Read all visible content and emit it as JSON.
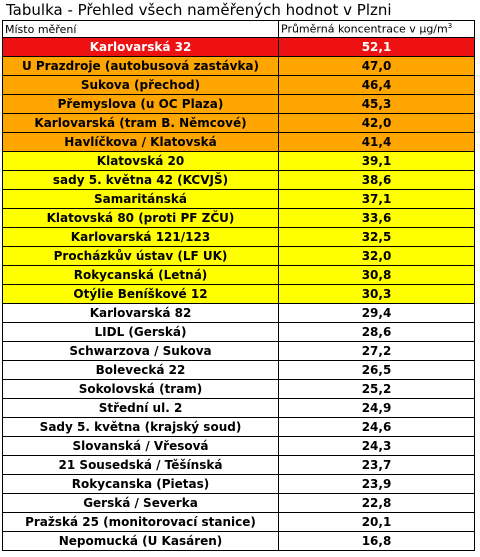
{
  "title": {
    "text": "Tabulka - Přehled všech naměřených hodnot v Plzni"
  },
  "header": {
    "location": "Místo měření",
    "concentration": "Průměrná koncentrace v μg/m",
    "concentration_sup": "3"
  },
  "colors": {
    "red": "#ee1111",
    "orange": "#ffa500",
    "yellow": "#ffff00",
    "white": "#ffffff"
  },
  "rows": [
    {
      "location": "Karlovarská 32",
      "value": "52,1",
      "level": "red"
    },
    {
      "location": "U Prazdroje (autobusová zastávka)",
      "value": "47,0",
      "level": "orange"
    },
    {
      "location": "Sukova (přechod)",
      "value": "46,4",
      "level": "orange"
    },
    {
      "location": "Přemyslova (u OC Plaza)",
      "value": "45,3",
      "level": "orange"
    },
    {
      "location": "Karlovarská (tram B. Němcové)",
      "value": "42,0",
      "level": "orange"
    },
    {
      "location": "Havlíčkova / Klatovská",
      "value": "41,4",
      "level": "orange"
    },
    {
      "location": "Klatovská 20",
      "value": "39,1",
      "level": "yellow"
    },
    {
      "location": "sady 5. května 42 (KCVJŠ)",
      "value": "38,6",
      "level": "yellow"
    },
    {
      "location": "Samaritánská",
      "value": "37,1",
      "level": "yellow"
    },
    {
      "location": "Klatovská 80 (proti PF ZČU)",
      "value": "33,6",
      "level": "yellow"
    },
    {
      "location": "Karlovarská 121/123",
      "value": "32,5",
      "level": "yellow"
    },
    {
      "location": "Procházkův ústav (LF UK)",
      "value": "32,0",
      "level": "yellow"
    },
    {
      "location": "Rokycanská (Letná)",
      "value": "30,8",
      "level": "yellow"
    },
    {
      "location": "Otýlie Beníškové 12",
      "value": "30,3",
      "level": "yellow"
    },
    {
      "location": "Karlovarská 82",
      "value": "29,4",
      "level": "white"
    },
    {
      "location": "LIDL (Gerská)",
      "value": "28,6",
      "level": "white"
    },
    {
      "location": "Schwarzova / Sukova",
      "value": "27,2",
      "level": "white"
    },
    {
      "location": "Bolevecká 22",
      "value": "26,5",
      "level": "white"
    },
    {
      "location": "Sokolovská (tram)",
      "value": "25,2",
      "level": "white"
    },
    {
      "location": "Střední ul. 2",
      "value": "24,9",
      "level": "white"
    },
    {
      "location": "Sady 5. května (krajský soud)",
      "value": "24,6",
      "level": "white"
    },
    {
      "location": "Slovanská / Vřesová",
      "value": "24,3",
      "level": "white"
    },
    {
      "location": "21 Sousedská / Těšínská",
      "value": "23,7",
      "level": "white"
    },
    {
      "location": "Rokycanska (Pietas)",
      "value": "23,9",
      "level": "white"
    },
    {
      "location": "Gerská / Severka",
      "value": "22,8",
      "level": "white"
    },
    {
      "location": "Pražská 25 (monitorovací stanice)",
      "value": "20,1",
      "level": "white"
    },
    {
      "location": "Nepomucká (U Kasáren)",
      "value": "16,8",
      "level": "white"
    }
  ]
}
